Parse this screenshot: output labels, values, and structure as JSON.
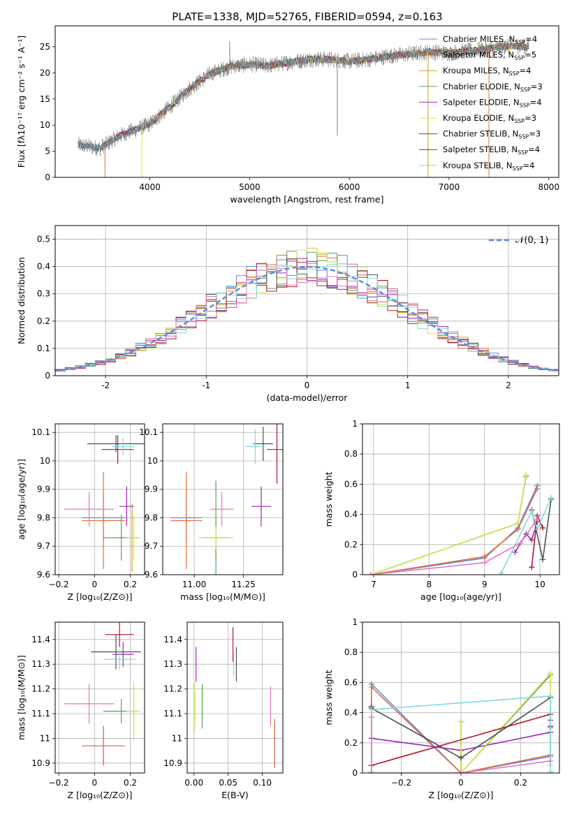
{
  "figure_title": "PLATE=1338, MJD=52765, FIBERID=0594, z=0.163",
  "chart_data": [
    {
      "id": "spectrum",
      "type": "line",
      "title": "PLATE=1338, MJD=52765, FIBERID=0594, z=0.163",
      "xlabel": "wavelength [Angstrom, rest frame]",
      "ylabel": "Flux [fλ10⁻¹⁷ erg cm⁻² s⁻¹ A⁻¹]",
      "xlim": [
        3050,
        8100
      ],
      "ylim": [
        0,
        29
      ],
      "xticks": [
        4000,
        5000,
        6000,
        7000,
        8000
      ],
      "yticks": [
        0,
        5,
        10,
        15,
        20,
        25
      ],
      "grid": false,
      "legend_position": "top-right",
      "continuum_points": [
        [
          3280,
          6.2
        ],
        [
          3500,
          5.6
        ],
        [
          3700,
          8.0
        ],
        [
          4000,
          10.2
        ],
        [
          4200,
          13.5
        ],
        [
          4400,
          17.0
        ],
        [
          4600,
          19.8
        ],
        [
          4800,
          21.2
        ],
        [
          5000,
          21.6
        ],
        [
          5200,
          21.4
        ],
        [
          5400,
          22.0
        ],
        [
          5600,
          22.6
        ],
        [
          5800,
          22.6
        ],
        [
          6000,
          22.2
        ],
        [
          6200,
          22.6
        ],
        [
          6400,
          23.2
        ],
        [
          6600,
          23.6
        ],
        [
          6800,
          24.0
        ],
        [
          7000,
          23.8
        ],
        [
          7200,
          24.2
        ],
        [
          7400,
          24.6
        ],
        [
          7600,
          25.2
        ],
        [
          7800,
          25.0
        ]
      ],
      "series": [
        {
          "name": "Chabrier MILES, N_SSP=4",
          "color": "#5b8ddf"
        },
        {
          "name": "Salpeter MILES, N_SSP=5",
          "color": "#e36c3a"
        },
        {
          "name": "Kroupa MILES, N_SSP=4",
          "color": "#d4a017"
        },
        {
          "name": "Chabrier ELODIE, N_SSP=3",
          "color": "#5aa05a"
        },
        {
          "name": "Salpeter ELODIE, N_SSP=4",
          "color": "#9b27b0"
        },
        {
          "name": "Kroupa ELODIE, N_SSP=3",
          "color": "#d6e85a"
        },
        {
          "name": "Chabrier STELIB, N_SSP=3",
          "color": "#4f4f4f"
        },
        {
          "name": "Salpeter STELIB, N_SSP=4",
          "color": "#b2182b"
        },
        {
          "name": "Kroupa STELIB, N_SSP=4",
          "color": "#80d8e0"
        }
      ]
    },
    {
      "id": "residuals",
      "type": "line",
      "xlabel": "(data-model)/error",
      "ylabel": "Normed distribution",
      "xlim": [
        -2.5,
        2.5
      ],
      "ylim": [
        0,
        0.55
      ],
      "xticks": [
        -2,
        -1,
        0,
        1,
        2
      ],
      "yticks": [
        0.0,
        0.1,
        0.2,
        0.3,
        0.4,
        0.5
      ],
      "grid": true,
      "legend": "𝒩(0, 1)",
      "legend_position": "top-right",
      "reference_curve": {
        "name": "𝒩(0, 1)",
        "mean": 0,
        "sigma": 1,
        "color": "#5b8ddf"
      }
    },
    {
      "id": "z-age",
      "type": "scatter",
      "xlabel": "Z [log₁₀(Z/Z⊙)]",
      "ylabel": "age  [log₁₀(age/yr)]",
      "xlim": [
        -0.22,
        0.28
      ],
      "ylim": [
        9.6,
        10.13
      ],
      "xticks": [
        -0.2,
        0.0,
        0.2
      ],
      "yticks": [
        9.6,
        9.7,
        9.8,
        9.9,
        10.0,
        10.1
      ],
      "grid": true,
      "points": [
        {
          "x": 0.05,
          "y": 9.8,
          "xerr": 0.12,
          "yerr": 0.08,
          "color": "#5b8ddf"
        },
        {
          "x": 0.05,
          "y": 9.79,
          "xerr": 0.12,
          "yerr": 0.17,
          "color": "#e36c3a"
        },
        {
          "x": 0.21,
          "y": 9.73,
          "xerr": 0.02,
          "yerr": 0.12,
          "color": "#d4a017"
        },
        {
          "x": 0.15,
          "y": 9.73,
          "xerr": 0.1,
          "yerr": 0.08,
          "color": "#5aa05a"
        },
        {
          "x": 0.18,
          "y": 9.84,
          "xerr": 0.04,
          "yerr": 0.07,
          "color": "#9b27b0"
        },
        {
          "x": 0.22,
          "y": 9.73,
          "xerr": 0.04,
          "yerr": 0.08,
          "color": "#d6e85a"
        },
        {
          "x": 0.12,
          "y": 10.06,
          "xerr": 0.16,
          "yerr": 0.03,
          "color": "#4f4f4f"
        },
        {
          "x": 0.13,
          "y": 10.04,
          "xerr": 0.09,
          "yerr": 0.05,
          "color": "#b2182b"
        },
        {
          "x": 0.16,
          "y": 10.05,
          "xerr": 0.06,
          "yerr": 0.03,
          "color": "#80d8e0"
        },
        {
          "x": -0.03,
          "y": 9.83,
          "xerr": 0.14,
          "yerr": 0.06,
          "color": "#e377c2"
        }
      ]
    },
    {
      "id": "mass-age",
      "type": "scatter",
      "xlabel": "mass [log₁₀(M/M⊙)]",
      "ylabel": "",
      "xlim": [
        10.84,
        11.45
      ],
      "ylim": [
        9.6,
        10.13
      ],
      "xticks": [
        11.0,
        11.25
      ],
      "tick_labels_x": [
        "11.00",
        "11.25"
      ],
      "yticks": [
        9.6,
        9.7,
        9.8,
        9.9,
        10.0,
        10.1
      ],
      "grid": true,
      "points": [
        {
          "x": 10.96,
          "y": 9.8,
          "xerr": 0.08,
          "yerr": 0.08,
          "color": "#5b8ddf"
        },
        {
          "x": 10.96,
          "y": 9.79,
          "xerr": 0.08,
          "yerr": 0.17,
          "color": "#e36c3a"
        },
        {
          "x": 11.11,
          "y": 9.73,
          "xerr": 0.05,
          "yerr": 0.08,
          "color": "#d4a017"
        },
        {
          "x": 11.11,
          "y": 9.73,
          "xerr": 0.07,
          "yerr": 0.2,
          "color": "#5aa05a"
        },
        {
          "x": 11.34,
          "y": 9.84,
          "xerr": 0.05,
          "yerr": 0.07,
          "color": "#9b27b0"
        },
        {
          "x": 11.11,
          "y": 9.73,
          "xerr": 0.09,
          "yerr": 0.04,
          "color": "#d6e85a"
        },
        {
          "x": 11.35,
          "y": 10.06,
          "xerr": 0.05,
          "yerr": 0.06,
          "color": "#4f4f4f"
        },
        {
          "x": 11.42,
          "y": 10.04,
          "xerr": 0.05,
          "yerr": 0.12,
          "color": "#b2182b"
        },
        {
          "x": 11.31,
          "y": 10.05,
          "xerr": 0.05,
          "yerr": 0.06,
          "color": "#80d8e0"
        },
        {
          "x": 11.14,
          "y": 9.83,
          "xerr": 0.06,
          "yerr": 0.06,
          "color": "#e377c2"
        }
      ]
    },
    {
      "id": "age-weight",
      "type": "line",
      "xlabel": "age  [log₁₀(age/yr)]",
      "ylabel": "mass weight",
      "xlim": [
        6.8,
        10.35
      ],
      "ylim": [
        0,
        1
      ],
      "xticks": [
        7,
        8,
        9,
        10
      ],
      "yticks": [
        0.0,
        0.2,
        0.4,
        0.6,
        0.8,
        1.0
      ],
      "grid": true,
      "series": [
        {
          "color": "#5b8ddf",
          "x": [
            6.95,
            9.0,
            9.6,
            9.95
          ],
          "y": [
            0.0,
            0.11,
            0.31,
            0.59
          ]
        },
        {
          "color": "#e36c3a",
          "x": [
            6.95,
            9.0,
            9.6,
            9.95
          ],
          "y": [
            0.0,
            0.12,
            0.3,
            0.57
          ]
        },
        {
          "color": "#d4a017",
          "x": [
            6.95,
            9.6,
            9.75
          ],
          "y": [
            0.0,
            0.34,
            0.66
          ]
        },
        {
          "color": "#5aa05a",
          "x": [
            6.95,
            9.6,
            9.75
          ],
          "y": [
            0.0,
            0.34,
            0.65
          ]
        },
        {
          "color": "#9b27b0",
          "x": [
            9.55,
            9.75,
            9.85,
            9.95
          ],
          "y": [
            0.15,
            0.27,
            0.23,
            0.35
          ]
        },
        {
          "color": "#d6e85a",
          "x": [
            6.95,
            9.6,
            9.75
          ],
          "y": [
            0.0,
            0.34,
            0.66
          ]
        },
        {
          "color": "#4f4f4f",
          "x": [
            9.85,
            10.05,
            10.2
          ],
          "y": [
            0.43,
            0.1,
            0.5
          ]
        },
        {
          "color": "#b2182b",
          "x": [
            9.85,
            9.95,
            10.05
          ],
          "y": [
            0.05,
            0.39,
            0.31
          ]
        },
        {
          "color": "#80d8e0",
          "x": [
            9.3,
            9.85,
            9.95,
            10.2
          ],
          "y": [
            0.01,
            0.42,
            0.3,
            0.51
          ]
        },
        {
          "color": "#e377c2",
          "x": [
            6.95,
            9.0,
            9.65,
            9.95
          ],
          "y": [
            0.0,
            0.08,
            0.21,
            0.37
          ]
        }
      ]
    },
    {
      "id": "z-mass",
      "type": "scatter",
      "xlabel": "Z [log₁₀(Z/Z⊙)]",
      "ylabel": "mass [log₁₀(M/M⊙)]",
      "xlim": [
        -0.22,
        0.28
      ],
      "ylim": [
        10.86,
        11.47
      ],
      "xticks": [
        -0.2,
        0.0,
        0.2
      ],
      "yticks": [
        10.9,
        11.0,
        11.1,
        11.2,
        11.3,
        11.4
      ],
      "grid": true,
      "points": [
        {
          "x": 0.05,
          "y": 10.97,
          "xerr": 0.12,
          "yerr": 0.08,
          "color": "#5b8ddf"
        },
        {
          "x": 0.05,
          "y": 10.97,
          "xerr": 0.12,
          "yerr": 0.08,
          "color": "#e36c3a"
        },
        {
          "x": 0.22,
          "y": 11.11,
          "xerr": 0.01,
          "yerr": 0.1,
          "color": "#d4a017"
        },
        {
          "x": 0.15,
          "y": 11.11,
          "xerr": 0.1,
          "yerr": 0.05,
          "color": "#5aa05a"
        },
        {
          "x": 0.16,
          "y": 11.34,
          "xerr": 0.06,
          "yerr": 0.05,
          "color": "#9b27b0"
        },
        {
          "x": 0.22,
          "y": 11.11,
          "xerr": 0.04,
          "yerr": 0.12,
          "color": "#d6e85a"
        },
        {
          "x": 0.12,
          "y": 11.35,
          "xerr": 0.14,
          "yerr": 0.07,
          "color": "#4f4f4f"
        },
        {
          "x": 0.14,
          "y": 11.42,
          "xerr": 0.08,
          "yerr": 0.05,
          "color": "#b2182b"
        },
        {
          "x": 0.14,
          "y": 11.32,
          "xerr": 0.09,
          "yerr": 0.04,
          "color": "#80d8e0"
        },
        {
          "x": -0.03,
          "y": 11.14,
          "xerr": 0.14,
          "yerr": 0.08,
          "color": "#e377c2"
        }
      ]
    },
    {
      "id": "ebv-mass",
      "type": "scatter",
      "xlabel": "E(B-V)",
      "ylabel": "",
      "xlim": [
        -0.01,
        0.13
      ],
      "ylim": [
        10.86,
        11.47
      ],
      "xticks": [
        0.0,
        0.05,
        0.1
      ],
      "tick_labels_x": [
        "0.00",
        "0.05",
        "0.10"
      ],
      "yticks": [
        10.9,
        11.0,
        11.1,
        11.2,
        11.3,
        11.4
      ],
      "grid": true,
      "points": [
        {
          "x": 0.118,
          "y": 10.97,
          "yerr": 0.09,
          "color": "#5b8ddf"
        },
        {
          "x": 0.118,
          "y": 10.98,
          "yerr": 0.1,
          "color": "#e36c3a"
        },
        {
          "x": 0.001,
          "y": 11.13,
          "yerr": 0.06,
          "color": "#d4a017"
        },
        {
          "x": 0.012,
          "y": 11.13,
          "yerr": 0.09,
          "color": "#5aa05a"
        },
        {
          "x": 0.003,
          "y": 11.3,
          "yerr": 0.07,
          "color": "#9b27b0"
        },
        {
          "x": 0.001,
          "y": 11.13,
          "yerr": 0.1,
          "color": "#d6e85a"
        },
        {
          "x": 0.062,
          "y": 11.3,
          "yerr": 0.07,
          "color": "#4f4f4f"
        },
        {
          "x": 0.057,
          "y": 11.38,
          "yerr": 0.07,
          "color": "#b2182b"
        },
        {
          "x": 0.058,
          "y": 11.3,
          "yerr": 0.05,
          "color": "#80d8e0"
        },
        {
          "x": 0.112,
          "y": 11.13,
          "yerr": 0.08,
          "color": "#e377c2"
        }
      ]
    },
    {
      "id": "z-weight",
      "type": "line",
      "xlabel": "Z [log₁₀(Z/Z⊙)]",
      "ylabel": "mass weight",
      "xlim": [
        -0.33,
        0.33
      ],
      "ylim": [
        0,
        1
      ],
      "xticks": [
        -0.2,
        0.0,
        0.2
      ],
      "yticks": [
        0.0,
        0.2,
        0.4,
        0.6,
        0.8,
        1.0
      ],
      "grid": true,
      "series": [
        {
          "color": "#5b8ddf",
          "x": [
            -0.3,
            -0.3,
            0.0,
            0.3,
            0.3
          ],
          "y": [
            0.0,
            0.59,
            0.0,
            0.11,
            0.0
          ]
        },
        {
          "color": "#e36c3a",
          "x": [
            -0.3,
            -0.3,
            0.0,
            0.3,
            0.3
          ],
          "y": [
            0.0,
            0.57,
            0.0,
            0.12,
            0.3
          ]
        },
        {
          "color": "#d4a017",
          "x": [
            0.0,
            0.0,
            0.3,
            0.3
          ],
          "y": [
            0.34,
            0.0,
            0.66,
            0.05
          ]
        },
        {
          "color": "#5aa05a",
          "x": [
            0.0,
            0.0,
            0.3,
            0.3
          ],
          "y": [
            0.34,
            0.0,
            0.65,
            0.05
          ]
        },
        {
          "color": "#9b27b0",
          "x": [
            -0.3,
            0.0,
            0.3,
            0.3
          ],
          "y": [
            0.23,
            0.15,
            0.27,
            0.35
          ]
        },
        {
          "color": "#d6e85a",
          "x": [
            0.0,
            0.0,
            0.3,
            0.3
          ],
          "y": [
            0.34,
            0.0,
            0.66,
            0.05
          ]
        },
        {
          "color": "#4f4f4f",
          "x": [
            -0.3,
            -0.3,
            0.0,
            0.3
          ],
          "y": [
            0.44,
            0.43,
            0.1,
            0.5
          ]
        },
        {
          "color": "#b2182b",
          "x": [
            -0.3,
            0.3,
            0.3
          ],
          "y": [
            0.05,
            0.39,
            0.31
          ]
        },
        {
          "color": "#80d8e0",
          "x": [
            -0.3,
            -0.3,
            0.3,
            0.3
          ],
          "y": [
            0.01,
            0.42,
            0.51,
            0.01
          ]
        },
        {
          "color": "#e377c2",
          "x": [
            -0.3,
            -0.3,
            0.0,
            0.3
          ],
          "y": [
            0.37,
            0.0,
            0.0,
            0.08
          ]
        }
      ]
    }
  ]
}
